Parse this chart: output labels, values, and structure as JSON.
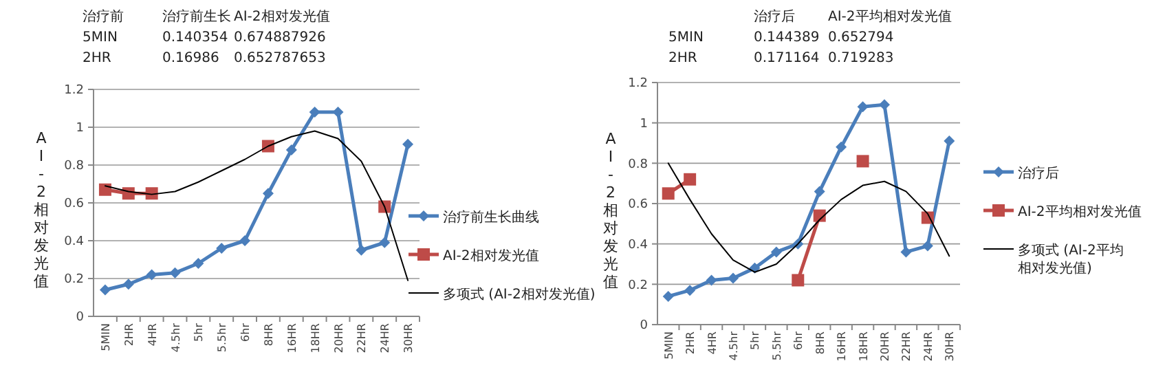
{
  "chart_data": [
    {
      "type": "line",
      "ylabel": "AI-2相对发光值",
      "categories": [
        "5MIN",
        "2HR",
        "4HR",
        "4.5hr",
        "5hr",
        "5.5hr",
        "6hr",
        "8HR",
        "16HR",
        "18HR",
        "20HR",
        "22HR",
        "24HR",
        "30HR"
      ],
      "ylim": [
        0,
        1.2
      ],
      "yticks": [
        0,
        0.2,
        0.4,
        0.6,
        0.8,
        1,
        1.2
      ],
      "grid": "y",
      "legend": "right",
      "annotations": [
        "治疗前",
        "治疗前生长",
        "AI-2相对发光值",
        "5MIN",
        "0.140354",
        "0.674887926",
        "2HR",
        "0.16986",
        "0.652787653"
      ],
      "series": [
        {
          "name": "治疗前生长曲线",
          "color": "#4a7ebb",
          "marker": "diamond",
          "values": [
            0.14,
            0.17,
            0.22,
            0.23,
            0.28,
            0.36,
            0.4,
            0.65,
            0.88,
            1.08,
            1.08,
            0.35,
            0.39,
            0.91
          ]
        },
        {
          "name": "AI-2相对发光值",
          "color": "#be4b48",
          "marker": "square",
          "values": [
            0.67,
            0.65,
            0.65,
            null,
            null,
            null,
            null,
            0.9,
            null,
            null,
            null,
            null,
            0.58,
            null
          ]
        },
        {
          "name": "多项式 (AI-2相对发光值)",
          "color": "#000000",
          "marker": "none",
          "values": [
            0.69,
            0.66,
            0.645,
            0.66,
            0.71,
            0.77,
            0.83,
            0.9,
            0.95,
            0.98,
            0.94,
            0.82,
            0.58,
            0.19
          ]
        }
      ]
    },
    {
      "type": "line",
      "ylabel": "AI-2相对发光值",
      "categories": [
        "5MIN",
        "2HR",
        "4HR",
        "4.5hr",
        "5hr",
        "5.5hr",
        "6hr",
        "8HR",
        "16HR",
        "18HR",
        "20HR",
        "22HR",
        "24HR",
        "30HR"
      ],
      "ylim": [
        0,
        1.2
      ],
      "yticks": [
        0,
        0.2,
        0.4,
        0.6,
        0.8,
        1,
        1.2
      ],
      "grid": "y",
      "legend": "right",
      "annotations": [
        null,
        "治疗后",
        "AI-2平均相对发光值",
        "5MIN",
        "0.144389",
        "0.652794",
        "2HR",
        "0.171164",
        "0.719283"
      ],
      "series": [
        {
          "name": "治疗后",
          "color": "#4a7ebb",
          "marker": "diamond",
          "values": [
            0.14,
            0.17,
            0.22,
            0.23,
            0.28,
            0.36,
            0.4,
            0.66,
            0.88,
            1.08,
            1.09,
            0.36,
            0.39,
            0.91
          ]
        },
        {
          "name": "AI-2平均相对发光值",
          "color": "#be4b48",
          "marker": "square",
          "values": [
            0.65,
            0.72,
            null,
            null,
            null,
            null,
            0.22,
            0.54,
            null,
            0.81,
            null,
            null,
            0.53,
            null
          ]
        },
        {
          "name": "多项式 (AI-2平均相对发光值)",
          "color": "#000000",
          "marker": "none",
          "values": [
            0.8,
            0.62,
            0.45,
            0.32,
            0.26,
            0.3,
            0.4,
            0.52,
            0.62,
            0.69,
            0.71,
            0.66,
            0.55,
            0.34
          ]
        }
      ]
    }
  ]
}
